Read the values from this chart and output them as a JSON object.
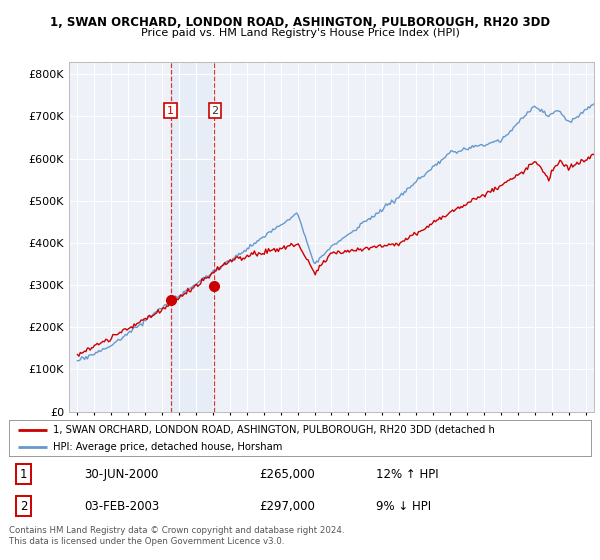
{
  "title1": "1, SWAN ORCHARD, LONDON ROAD, ASHINGTON, PULBOROUGH, RH20 3DD",
  "title2": "Price paid vs. HM Land Registry's House Price Index (HPI)",
  "legend_line1": "1, SWAN ORCHARD, LONDON ROAD, ASHINGTON, PULBOROUGH, RH20 3DD (detached h",
  "legend_line2": "HPI: Average price, detached house, Horsham",
  "table_row1": [
    "1",
    "30-JUN-2000",
    "£265,000",
    "12% ↑ HPI"
  ],
  "table_row2": [
    "2",
    "03-FEB-2003",
    "£297,000",
    "9% ↓ HPI"
  ],
  "footnote": "Contains HM Land Registry data © Crown copyright and database right 2024.\nThis data is licensed under the Open Government Licence v3.0.",
  "sale1_date": 2000.5,
  "sale2_date": 2003.08,
  "sale1_price": 265000,
  "sale2_price": 297000,
  "red_color": "#cc0000",
  "blue_color": "#6699cc",
  "bg_color": "#ffffff",
  "plot_bg": "#eef2f8",
  "grid_color": "#ffffff",
  "ylim_min": 0,
  "ylim_max": 830000
}
